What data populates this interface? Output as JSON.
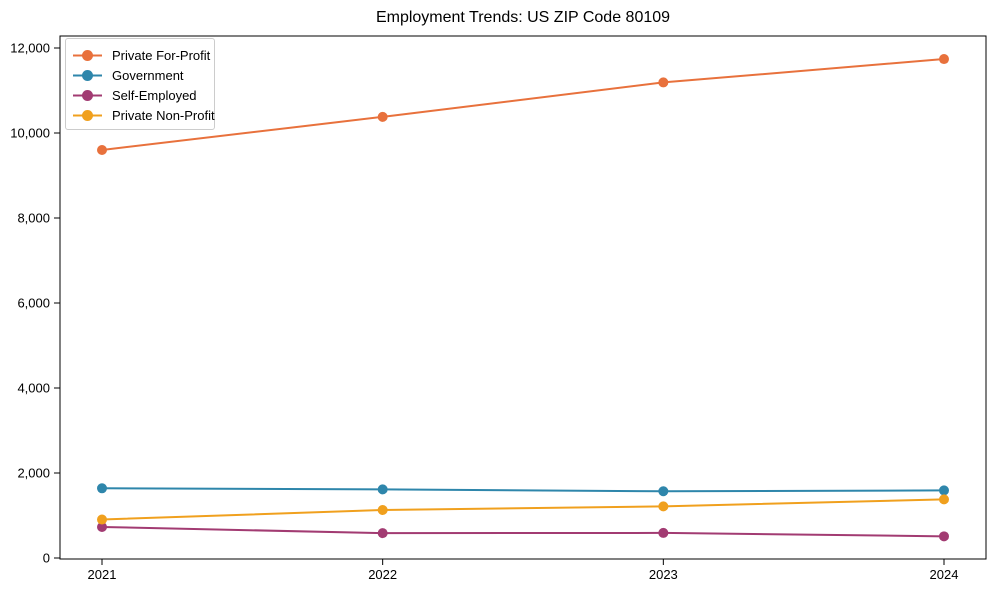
{
  "chart_data": {
    "type": "line",
    "title": "Employment Trends: US ZIP Code 80109",
    "x": [
      2021,
      2022,
      2023,
      2024
    ],
    "x_tick_labels": [
      "2021",
      "2022",
      "2023",
      "2024"
    ],
    "y_ticks": [
      0,
      2000,
      4000,
      6000,
      8000,
      10000,
      12000
    ],
    "y_tick_labels": [
      "0",
      "2,000",
      "4,000",
      "6,000",
      "8,000",
      "10,000",
      "12,000"
    ],
    "ylim": [
      0,
      12280
    ],
    "grid": false,
    "legend_position": "upper-left",
    "marker_style": "circle",
    "series": [
      {
        "name": "Private For-Profit",
        "color": "#E8713C",
        "values": [
          9600,
          10380,
          11190,
          11740
        ]
      },
      {
        "name": "Government",
        "color": "#2E86AB",
        "values": [
          1640,
          1615,
          1570,
          1590
        ]
      },
      {
        "name": "Self-Employed",
        "color": "#A23B72",
        "values": [
          730,
          585,
          590,
          510
        ]
      },
      {
        "name": "Private Non-Profit",
        "color": "#F0A01E",
        "values": [
          905,
          1130,
          1215,
          1380
        ]
      }
    ]
  }
}
